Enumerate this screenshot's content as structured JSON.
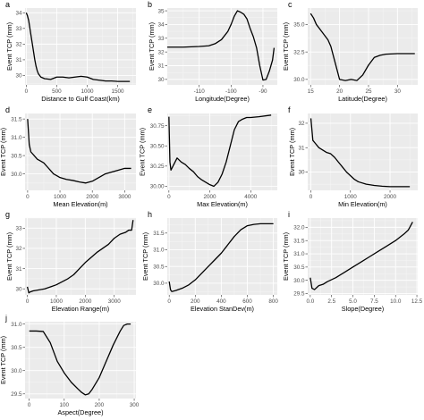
{
  "chart_data": [
    {
      "tag": "a",
      "type": "line",
      "xlabel": "Distance to Gulf Coast(km)",
      "ylabel": "Event TCP (mm)",
      "xlim": [
        -20,
        1800
      ],
      "ylim": [
        29.4,
        34.3
      ],
      "xticks": [
        0,
        500,
        1000,
        1500
      ],
      "yticks": [
        30,
        31,
        32,
        33,
        34
      ],
      "x": [
        0,
        20,
        40,
        60,
        80,
        100,
        120,
        140,
        160,
        180,
        200,
        240,
        300,
        400,
        500,
        600,
        700,
        800,
        900,
        1000,
        1100,
        1200,
        1300,
        1400,
        1500,
        1600,
        1700
      ],
      "y": [
        34.0,
        33.8,
        33.5,
        33.0,
        32.5,
        32.0,
        31.5,
        31.0,
        30.6,
        30.3,
        30.1,
        29.9,
        29.8,
        29.75,
        29.9,
        29.9,
        29.85,
        29.9,
        29.95,
        29.9,
        29.75,
        29.7,
        29.65,
        29.65,
        29.62,
        29.62,
        29.62
      ]
    },
    {
      "tag": "b",
      "type": "line",
      "xlabel": "Longitude(Degree)",
      "ylabel": "Event TCP (mm)",
      "xlim": [
        -120,
        -85.5
      ],
      "ylim": [
        29.6,
        35.2
      ],
      "xticks": [
        -110,
        -100,
        -90
      ],
      "xtick_labels": [
        "-110",
        "-100",
        "-90"
      ],
      "yticks": [
        30,
        31,
        32,
        33,
        34,
        35
      ],
      "x": [
        -120,
        -115,
        -110,
        -107,
        -105,
        -103,
        -101,
        -100,
        -99,
        -98,
        -97,
        -96,
        -95,
        -94,
        -93,
        -92,
        -91,
        -90,
        -89,
        -88,
        -87,
        -86.5
      ],
      "y": [
        32.35,
        32.35,
        32.4,
        32.45,
        32.6,
        32.9,
        33.5,
        34.0,
        34.6,
        35.0,
        34.9,
        34.75,
        34.4,
        33.7,
        33.1,
        32.3,
        31.0,
        29.95,
        30.0,
        30.6,
        31.4,
        32.3
      ]
    },
    {
      "tag": "c",
      "type": "line",
      "xlabel": "Latitude(Degree)",
      "ylabel": "Event TCP (mm)",
      "xlim": [
        14.5,
        33.5
      ],
      "ylim": [
        29.5,
        36.5
      ],
      "xticks": [
        15,
        20,
        25,
        30
      ],
      "yticks": [
        30.0,
        32.5,
        35.0
      ],
      "ytick_labels": [
        "30.0",
        "32.5",
        "35.0"
      ],
      "x": [
        15,
        15.5,
        16,
        17,
        18,
        18.5,
        19,
        19.5,
        20,
        21,
        22,
        23,
        24,
        25,
        26,
        27,
        28,
        30,
        32,
        33
      ],
      "y": [
        36.0,
        35.6,
        35.0,
        34.3,
        33.6,
        33.0,
        32.0,
        31.0,
        30.0,
        29.9,
        30.0,
        29.9,
        30.4,
        31.3,
        32.0,
        32.2,
        32.3,
        32.35,
        32.35,
        32.35
      ]
    },
    {
      "tag": "d",
      "type": "line",
      "xlabel": "Mean Elevation(m)",
      "ylabel": "Event TCP (mm)",
      "xlim": [
        -80,
        3350
      ],
      "ylim": [
        29.55,
        31.65
      ],
      "xticks": [
        0,
        1000,
        2000,
        3000
      ],
      "yticks": [
        30.0,
        30.5,
        31.0,
        31.5
      ],
      "ytick_labels": [
        "30.0",
        "30.5",
        "31.0",
        "31.5"
      ],
      "x": [
        0,
        50,
        100,
        200,
        300,
        400,
        500,
        600,
        700,
        800,
        900,
        1000,
        1200,
        1400,
        1600,
        1800,
        2000,
        2200,
        2400,
        2600,
        2800,
        3000,
        3200
      ],
      "y": [
        31.5,
        30.8,
        30.6,
        30.5,
        30.4,
        30.35,
        30.3,
        30.2,
        30.1,
        30.0,
        29.95,
        29.9,
        29.85,
        29.82,
        29.78,
        29.75,
        29.8,
        29.9,
        30.0,
        30.05,
        30.1,
        30.15,
        30.15
      ]
    },
    {
      "tag": "e",
      "type": "line",
      "xlabel": "Max Elevation(m)",
      "ylabel": "Event TCP (mm)",
      "xlim": [
        -80,
        5300
      ],
      "ylim": [
        29.95,
        30.9
      ],
      "xticks": [
        0,
        2000,
        4000
      ],
      "yticks": [
        30.0,
        30.25,
        30.5,
        30.75
      ],
      "ytick_labels": [
        "30.00",
        "30.25",
        "30.50",
        "30.75"
      ],
      "x": [
        0,
        50,
        100,
        200,
        400,
        600,
        800,
        1000,
        1200,
        1400,
        1600,
        1800,
        2000,
        2200,
        2400,
        2600,
        2800,
        3000,
        3200,
        3400,
        3600,
        3800,
        4000,
        4400,
        5000
      ],
      "y": [
        30.86,
        30.3,
        30.2,
        30.25,
        30.35,
        30.3,
        30.27,
        30.22,
        30.18,
        30.12,
        30.08,
        30.05,
        30.02,
        30.0,
        30.05,
        30.15,
        30.3,
        30.5,
        30.7,
        30.8,
        30.83,
        30.85,
        30.85,
        30.86,
        30.88
      ]
    },
    {
      "tag": "f",
      "type": "line",
      "xlabel": "Min Elevation(m)",
      "ylabel": "Event TCP (mm)",
      "xlim": [
        -80,
        2700
      ],
      "ylim": [
        29.25,
        32.4
      ],
      "xticks": [
        0,
        1000,
        2000
      ],
      "yticks": [
        30,
        31,
        32
      ],
      "x": [
        0,
        50,
        100,
        200,
        300,
        400,
        500,
        600,
        700,
        800,
        900,
        1000,
        1100,
        1200,
        1400,
        1600,
        1800,
        2000,
        2200,
        2500
      ],
      "y": [
        32.2,
        31.3,
        31.2,
        31.0,
        30.9,
        30.8,
        30.75,
        30.6,
        30.4,
        30.2,
        30.0,
        29.85,
        29.7,
        29.6,
        29.5,
        29.45,
        29.42,
        29.4,
        29.4,
        29.4
      ]
    },
    {
      "tag": "g",
      "type": "line",
      "xlabel": "Elevation Range(m)",
      "ylabel": "Event TCP (mm)",
      "xlim": [
        -80,
        3750
      ],
      "ylim": [
        29.7,
        33.5
      ],
      "xticks": [
        0,
        1000,
        2000,
        3000
      ],
      "yticks": [
        30,
        31,
        32,
        33
      ],
      "x": [
        0,
        50,
        100,
        200,
        400,
        600,
        800,
        1000,
        1200,
        1400,
        1600,
        1800,
        2000,
        2200,
        2400,
        2600,
        2800,
        3000,
        3200,
        3400,
        3500,
        3600,
        3650
      ],
      "y": [
        30.1,
        29.8,
        29.85,
        29.9,
        29.95,
        30.0,
        30.1,
        30.2,
        30.35,
        30.5,
        30.7,
        31.0,
        31.3,
        31.55,
        31.8,
        32.0,
        32.2,
        32.5,
        32.7,
        32.8,
        32.9,
        32.9,
        33.4
      ]
    },
    {
      "tag": "h",
      "type": "line",
      "xlabel": "Elevation StanDev(m)",
      "ylabel": "Event TCP (mm)",
      "xlim": [
        -15,
        830
      ],
      "ylim": [
        29.65,
        31.95
      ],
      "xticks": [
        0,
        200,
        400,
        600,
        800
      ],
      "yticks": [
        30.0,
        30.5,
        31.0,
        31.5
      ],
      "ytick_labels": [
        "30.0",
        "30.5",
        "31.0",
        "31.5"
      ],
      "x": [
        0,
        10,
        20,
        50,
        100,
        150,
        200,
        250,
        300,
        350,
        400,
        450,
        500,
        550,
        600,
        650,
        700,
        800
      ],
      "y": [
        30.05,
        29.8,
        29.75,
        29.78,
        29.85,
        29.95,
        30.1,
        30.3,
        30.5,
        30.7,
        30.9,
        31.15,
        31.4,
        31.6,
        31.72,
        31.76,
        31.78,
        31.78
      ]
    },
    {
      "tag": "i",
      "type": "line",
      "xlabel": "Slope(Degree)",
      "ylabel": "Event TCP (mm)",
      "xlim": [
        -0.3,
        12.6
      ],
      "ylim": [
        29.45,
        32.35
      ],
      "xticks": [
        0.0,
        2.5,
        5.0,
        7.5,
        10.0,
        12.5
      ],
      "xtick_labels": [
        "0.0",
        "2.5",
        "5.0",
        "7.5",
        "10.0",
        "12.5"
      ],
      "yticks": [
        29.5,
        30.0,
        30.5,
        31.0,
        31.5,
        32.0
      ],
      "ytick_labels": [
        "29.5",
        "30.0",
        "30.5",
        "31.0",
        "31.5",
        "32.0"
      ],
      "x": [
        0,
        0.2,
        0.5,
        1.0,
        1.5,
        2,
        3,
        4,
        5,
        6,
        7,
        8,
        9,
        10,
        11,
        11.5,
        12
      ],
      "y": [
        30.1,
        29.7,
        29.65,
        29.8,
        29.85,
        29.95,
        30.1,
        30.3,
        30.5,
        30.7,
        30.9,
        31.1,
        31.3,
        31.5,
        31.75,
        31.9,
        32.2
      ]
    },
    {
      "tag": "j",
      "type": "line",
      "xlabel": "Aspect(Degree)",
      "ylabel": "Event TCP (mm)",
      "xlim": [
        -12,
        305
      ],
      "ylim": [
        29.4,
        31.05
      ],
      "xticks": [
        0,
        100,
        200,
        300
      ],
      "yticks": [
        29.5,
        30.0,
        30.5,
        31.0
      ],
      "ytick_labels": [
        "29.5",
        "30.0",
        "30.5",
        "31.0"
      ],
      "x": [
        0,
        20,
        40,
        60,
        80,
        100,
        120,
        140,
        150,
        160,
        170,
        180,
        200,
        220,
        240,
        260,
        270,
        280,
        290
      ],
      "y": [
        30.85,
        30.85,
        30.84,
        30.6,
        30.2,
        29.95,
        29.75,
        29.6,
        29.53,
        29.48,
        29.5,
        29.6,
        29.85,
        30.2,
        30.55,
        30.85,
        30.97,
        31.0,
        31.0
      ]
    }
  ]
}
